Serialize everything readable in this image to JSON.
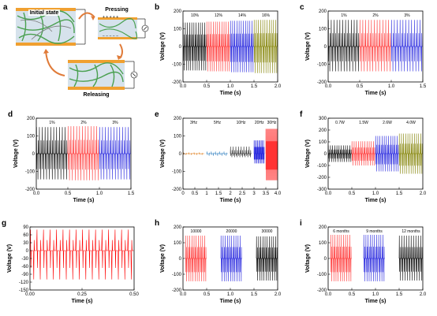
{
  "diagram": {
    "label": "a",
    "initial": "Initial state",
    "pressing": "Pressing",
    "releasing": "Releasing",
    "colors": {
      "electrode": "#f0a030",
      "fiber": "#4aa050",
      "matrix": "#c8d8e8",
      "arrow": "#e07b39"
    }
  },
  "chart_data": [
    {
      "id": "b",
      "type": "line",
      "label": "b",
      "xlabel": "Time (s)",
      "ylabel": "Voltage (V)",
      "xlim": [
        0,
        2.0
      ],
      "ylim": [
        -200,
        200
      ],
      "xticks": [
        0.0,
        0.5,
        1.0,
        1.5,
        2.0
      ],
      "yticks": [
        -200,
        -100,
        0,
        100,
        200
      ],
      "xtick_labels": [
        "0.0",
        "0.5",
        "1.0",
        "1.5",
        "2.0"
      ],
      "series": [
        {
          "name": "10%",
          "color": "#000000",
          "x_range": [
            0.0,
            0.5
          ],
          "peak_pos": 135,
          "peak_neg": -135,
          "cycles": 11
        },
        {
          "name": "12%",
          "color": "#ff3333",
          "x_range": [
            0.5,
            1.0
          ],
          "peak_pos": 140,
          "peak_neg": -140,
          "cycles": 11
        },
        {
          "name": "14%",
          "color": "#2222dd",
          "x_range": [
            1.0,
            1.5
          ],
          "peak_pos": 145,
          "peak_neg": -145,
          "cycles": 11
        },
        {
          "name": "16%",
          "color": "#808000",
          "x_range": [
            1.5,
            2.0
          ],
          "peak_pos": 150,
          "peak_neg": -150,
          "cycles": 11
        }
      ]
    },
    {
      "id": "c",
      "type": "line",
      "label": "c",
      "xlabel": "Time (s)",
      "ylabel": "Voltage (V)",
      "xlim": [
        0,
        1.5
      ],
      "ylim": [
        -200,
        200
      ],
      "xticks": [
        0.0,
        0.5,
        1.0,
        1.5
      ],
      "yticks": [
        -200,
        -100,
        0,
        100,
        200
      ],
      "xtick_labels": [
        "0.0",
        "0.5",
        "1.0",
        "1.5"
      ],
      "series": [
        {
          "name": "1%",
          "color": "#000000",
          "x_range": [
            0.0,
            0.5
          ],
          "peak_pos": 150,
          "peak_neg": -140,
          "cycles": 11
        },
        {
          "name": "2%",
          "color": "#ff3333",
          "x_range": [
            0.5,
            1.0
          ],
          "peak_pos": 150,
          "peak_neg": -140,
          "cycles": 11
        },
        {
          "name": "3%",
          "color": "#2222dd",
          "x_range": [
            1.0,
            1.5
          ],
          "peak_pos": 150,
          "peak_neg": -140,
          "cycles": 11
        }
      ]
    },
    {
      "id": "d",
      "type": "line",
      "label": "d",
      "xlabel": "Time (s)",
      "ylabel": "Voltage (V)",
      "xlim": [
        0,
        1.5
      ],
      "ylim": [
        -200,
        200
      ],
      "xticks": [
        0.0,
        0.5,
        1.0,
        1.5
      ],
      "yticks": [
        -200,
        -100,
        0,
        100,
        200
      ],
      "xtick_labels": [
        "0.0",
        "0.5",
        "1.0",
        "1.5"
      ],
      "series": [
        {
          "name": "1%",
          "color": "#000000",
          "x_range": [
            0.0,
            0.5
          ],
          "peak_pos": 150,
          "peak_neg": -145,
          "cycles": 11
        },
        {
          "name": "2%",
          "color": "#ff3333",
          "x_range": [
            0.5,
            1.0
          ],
          "peak_pos": 155,
          "peak_neg": -150,
          "cycles": 11
        },
        {
          "name": "3%",
          "color": "#2222dd",
          "x_range": [
            1.0,
            1.5
          ],
          "peak_pos": 150,
          "peak_neg": -145,
          "cycles": 11
        }
      ]
    },
    {
      "id": "e",
      "type": "line",
      "label": "e",
      "xlabel": "Time (s)",
      "ylabel": "Voltage (V)",
      "xlim": [
        0,
        4.0
      ],
      "ylim": [
        -200,
        200
      ],
      "xticks": [
        0.0,
        0.5,
        1.0,
        1.5,
        2.0,
        2.5,
        3.0,
        3.5,
        4.0
      ],
      "yticks": [
        -200,
        -100,
        0,
        100,
        200
      ],
      "xtick_labels": [
        "0",
        "0.5",
        "1",
        "1.5",
        "2",
        "2.5",
        "3",
        "3.5",
        "4.0"
      ],
      "series": [
        {
          "name": "3Hz",
          "color": "#e08020",
          "x_range": [
            0.0,
            0.9
          ],
          "peak_pos": 5,
          "peak_neg": -5,
          "cycles": 4
        },
        {
          "name": "5Hz",
          "color": "#4a90c8",
          "x_range": [
            1.0,
            1.9
          ],
          "peak_pos": 12,
          "peak_neg": -12,
          "cycles": 5
        },
        {
          "name": "10Hz",
          "color": "#333333",
          "x_range": [
            2.0,
            2.9
          ],
          "peak_pos": 40,
          "peak_neg": -20,
          "cycles": 8
        },
        {
          "name": "20Hz",
          "color": "#2222dd",
          "x_range": [
            3.0,
            3.45
          ],
          "peak_pos": 75,
          "peak_neg": -55,
          "cycles": 9
        },
        {
          "name": "30Hz",
          "color": "#ff3333",
          "x_range": [
            3.5,
            4.0
          ],
          "peak_pos": 140,
          "peak_neg": -150,
          "cycles": 15
        }
      ]
    },
    {
      "id": "f",
      "type": "line",
      "label": "f",
      "xlabel": "Time (s)",
      "ylabel": "Voltage (V)",
      "xlim": [
        0,
        2.0
      ],
      "ylim": [
        -300,
        300
      ],
      "xticks": [
        0.0,
        0.5,
        1.0,
        1.5,
        2.0
      ],
      "yticks": [
        -300,
        -200,
        -100,
        0,
        100,
        200,
        300
      ],
      "xtick_labels": [
        "0.0",
        "0.5",
        "1.0",
        "1.5",
        "2.0"
      ],
      "series": [
        {
          "name": "0.7W",
          "color": "#000000",
          "x_range": [
            0.0,
            0.5
          ],
          "peak_pos": 70,
          "peak_neg": -70,
          "cycles": 11
        },
        {
          "name": "1.5W",
          "color": "#ff3333",
          "x_range": [
            0.5,
            1.0
          ],
          "peak_pos": 105,
          "peak_neg": -100,
          "cycles": 11
        },
        {
          "name": "2.6W",
          "color": "#2222dd",
          "x_range": [
            1.0,
            1.5
          ],
          "peak_pos": 150,
          "peak_neg": -150,
          "cycles": 11
        },
        {
          "name": "4.0W",
          "color": "#808000",
          "x_range": [
            1.5,
            2.0
          ],
          "peak_pos": 170,
          "peak_neg": -170,
          "cycles": 11
        }
      ]
    },
    {
      "id": "g",
      "type": "line",
      "label": "g",
      "xlabel": "Time (s)",
      "ylabel": "Voltage (V)",
      "xlim": [
        0,
        0.5
      ],
      "ylim": [
        -150,
        90
      ],
      "xticks": [
        0.0,
        0.25,
        0.5
      ],
      "yticks": [
        -150,
        -120,
        -90,
        -60,
        -30,
        0,
        30,
        60,
        90
      ],
      "xtick_labels": [
        "0.00",
        "0.25",
        "0.50"
      ],
      "series": [
        {
          "name": "",
          "color": "#ff0000",
          "x_range": [
            0.0,
            0.5
          ],
          "peak_pos": 80,
          "peak_neg": -110,
          "cycles": 16
        }
      ]
    },
    {
      "id": "h",
      "type": "line",
      "label": "h",
      "xlabel": "Time (s)",
      "ylabel": "Voltage (V)",
      "xlim": [
        0,
        2.0
      ],
      "ylim": [
        -200,
        200
      ],
      "xticks": [
        0.0,
        0.5,
        1.0,
        1.5,
        2.0
      ],
      "yticks": [
        -200,
        -100,
        0,
        100,
        200
      ],
      "xtick_labels": [
        "0.0",
        "0.5",
        "1.0",
        "1.5",
        "2.0"
      ],
      "series": [
        {
          "name": "10000",
          "color": "#ff3333",
          "x_range": [
            0.05,
            0.5
          ],
          "peak_pos": 145,
          "peak_neg": -145,
          "cycles": 10
        },
        {
          "name": "20000",
          "color": "#2222dd",
          "x_range": [
            0.8,
            1.25
          ],
          "peak_pos": 145,
          "peak_neg": -145,
          "cycles": 10
        },
        {
          "name": "30000",
          "color": "#000000",
          "x_range": [
            1.55,
            2.0
          ],
          "peak_pos": 140,
          "peak_neg": -140,
          "cycles": 10
        }
      ]
    },
    {
      "id": "i",
      "type": "line",
      "label": "i",
      "xlabel": "Time (s)",
      "ylabel": "Voltage (V)",
      "xlim": [
        0,
        2.0
      ],
      "ylim": [
        -200,
        200
      ],
      "xticks": [
        0.0,
        0.5,
        1.0,
        1.5,
        2.0
      ],
      "yticks": [
        -200,
        -100,
        0,
        100,
        200
      ],
      "xtick_labels": [
        "0.0",
        "0.5",
        "1.0",
        "1.5",
        "2.0"
      ],
      "series": [
        {
          "name": "6 months",
          "color": "#ff3333",
          "x_range": [
            0.05,
            0.5
          ],
          "peak_pos": 150,
          "peak_neg": -145,
          "cycles": 10
        },
        {
          "name": "9 months",
          "color": "#2222dd",
          "x_range": [
            0.75,
            1.2
          ],
          "peak_pos": 150,
          "peak_neg": -145,
          "cycles": 10
        },
        {
          "name": "12 months",
          "color": "#000000",
          "x_range": [
            1.5,
            2.0
          ],
          "peak_pos": 145,
          "peak_neg": -140,
          "cycles": 10
        }
      ]
    }
  ]
}
